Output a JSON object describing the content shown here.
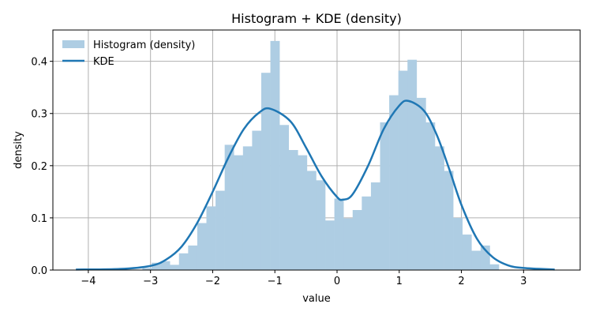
{
  "chart_data": {
    "type": "bar",
    "title": "Histogram + KDE (density)",
    "xlabel": "value",
    "ylabel": "density",
    "xlim": [
      -4.57,
      3.91
    ],
    "ylim": [
      0,
      0.46
    ],
    "xticks": [
      -4,
      -3,
      -2,
      -1,
      0,
      1,
      2,
      3
    ],
    "yticks": [
      0.0,
      0.1,
      0.2,
      0.3,
      0.4
    ],
    "grid": true,
    "legend_placement": "upper-left",
    "legend": [
      "Histogram (density)",
      "KDE"
    ],
    "colors": {
      "histogram": "#aecde3",
      "kde": "#1f77b4",
      "grid": "#b0b0b0"
    },
    "histogram": {
      "bin_start": -3.13,
      "bin_width": 0.147,
      "values": [
        0.004,
        0.014,
        0.017,
        0.01,
        0.032,
        0.047,
        0.09,
        0.122,
        0.152,
        0.24,
        0.22,
        0.237,
        0.267,
        0.378,
        0.439,
        0.278,
        0.23,
        0.22,
        0.19,
        0.172,
        0.095,
        0.137,
        0.099,
        0.115,
        0.141,
        0.168,
        0.283,
        0.335,
        0.382,
        0.403,
        0.33,
        0.283,
        0.237,
        0.19,
        0.1,
        0.068,
        0.037,
        0.047,
        0.011
      ]
    },
    "kde": {
      "x": [
        -4.2,
        -3.5,
        -3.0,
        -2.75,
        -2.5,
        -2.25,
        -2.0,
        -1.75,
        -1.5,
        -1.25,
        -1.07,
        -0.75,
        -0.5,
        -0.25,
        0.0,
        0.1,
        0.25,
        0.5,
        0.75,
        1.0,
        1.15,
        1.4,
        1.6,
        1.8,
        2.0,
        2.25,
        2.5,
        2.75,
        3.0,
        3.5
      ],
      "y": [
        0.001,
        0.002,
        0.008,
        0.02,
        0.045,
        0.09,
        0.15,
        0.215,
        0.27,
        0.302,
        0.309,
        0.285,
        0.235,
        0.18,
        0.14,
        0.135,
        0.145,
        0.2,
        0.27,
        0.315,
        0.324,
        0.305,
        0.26,
        0.195,
        0.125,
        0.06,
        0.025,
        0.009,
        0.004,
        0.001
      ]
    }
  }
}
